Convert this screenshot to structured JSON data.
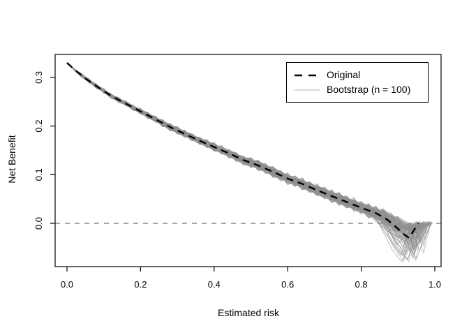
{
  "chart_data": {
    "type": "line",
    "title": "",
    "xlabel": "Estimated risk",
    "ylabel": "Net Benefit",
    "xlim": [
      -0.032,
      1.017
    ],
    "ylim": [
      -0.089,
      0.347
    ],
    "xtick_labels": [
      "0.0",
      "0.2",
      "0.4",
      "0.6",
      "0.8",
      "1.0"
    ],
    "xtick_values": [
      0.0,
      0.2,
      0.4,
      0.6,
      0.8,
      1.0
    ],
    "ytick_labels": [
      "0.0",
      "0.1",
      "0.2",
      "0.3"
    ],
    "ytick_values": [
      0.0,
      0.1,
      0.2,
      0.3
    ],
    "grid": false,
    "legend_position": "top-right",
    "zero_line": {
      "y": 0.0,
      "style": "dashed",
      "color": "#6f6f6f"
    },
    "series": [
      {
        "name": "Original",
        "type": "line",
        "style": "dashed",
        "color": "#000000",
        "width": 2.4,
        "x": [
          0.0,
          0.02,
          0.05,
          0.08,
          0.12,
          0.16,
          0.2,
          0.24,
          0.28,
          0.32,
          0.36,
          0.4,
          0.44,
          0.48,
          0.52,
          0.56,
          0.6,
          0.64,
          0.68,
          0.72,
          0.76,
          0.8,
          0.84,
          0.87,
          0.895,
          0.915,
          0.93,
          0.945,
          0.955
        ],
        "y": [
          0.33,
          0.316,
          0.298,
          0.282,
          0.262,
          0.246,
          0.23,
          0.214,
          0.198,
          0.184,
          0.17,
          0.157,
          0.144,
          0.13,
          0.119,
          0.106,
          0.092,
          0.081,
          0.068,
          0.056,
          0.044,
          0.032,
          0.021,
          0.008,
          -0.008,
          -0.022,
          -0.03,
          -0.012,
          0.0
        ]
      },
      {
        "name": "Bootstrap (n = 100)",
        "type": "line-ensemble",
        "style": "solid",
        "color": "#8f8f8f",
        "legend_sample_color": "#c2c2c2",
        "width": 1,
        "n": 100,
        "description": "100 bootstrap resample curves following the Original curve with small noise, fanning out into V-shaped dips (down to about -0.08) between x = 0.85 and x = 1.0, re-converging to 0 near x = 0.96-0.99",
        "base_x": [
          0.0,
          0.02,
          0.05,
          0.08,
          0.12,
          0.16,
          0.2,
          0.24,
          0.28,
          0.32,
          0.36,
          0.4,
          0.44,
          0.48,
          0.52,
          0.56,
          0.6,
          0.64,
          0.68,
          0.72,
          0.76,
          0.8,
          0.84,
          0.88,
          0.92
        ],
        "base_y": [
          0.33,
          0.316,
          0.298,
          0.282,
          0.262,
          0.246,
          0.23,
          0.214,
          0.198,
          0.184,
          0.17,
          0.157,
          0.144,
          0.13,
          0.119,
          0.106,
          0.092,
          0.081,
          0.068,
          0.056,
          0.044,
          0.032,
          0.021,
          0.01,
          0.002
        ]
      }
    ]
  },
  "legend": {
    "items": [
      {
        "label": "Original"
      },
      {
        "label": "Bootstrap (n = 100)"
      }
    ]
  },
  "axes": {
    "ylabel": "Net Benefit",
    "xlabel": "Estimated risk"
  },
  "colors": {
    "background": "#ffffff",
    "axis": "#000000",
    "tick_text": "#000000",
    "original_line": "#000000",
    "bootstrap_line": "#8f8f8f",
    "bootstrap_legend_sample": "#c2c2c2",
    "zero_line": "#6f6f6f",
    "legend_border": "#000000"
  }
}
